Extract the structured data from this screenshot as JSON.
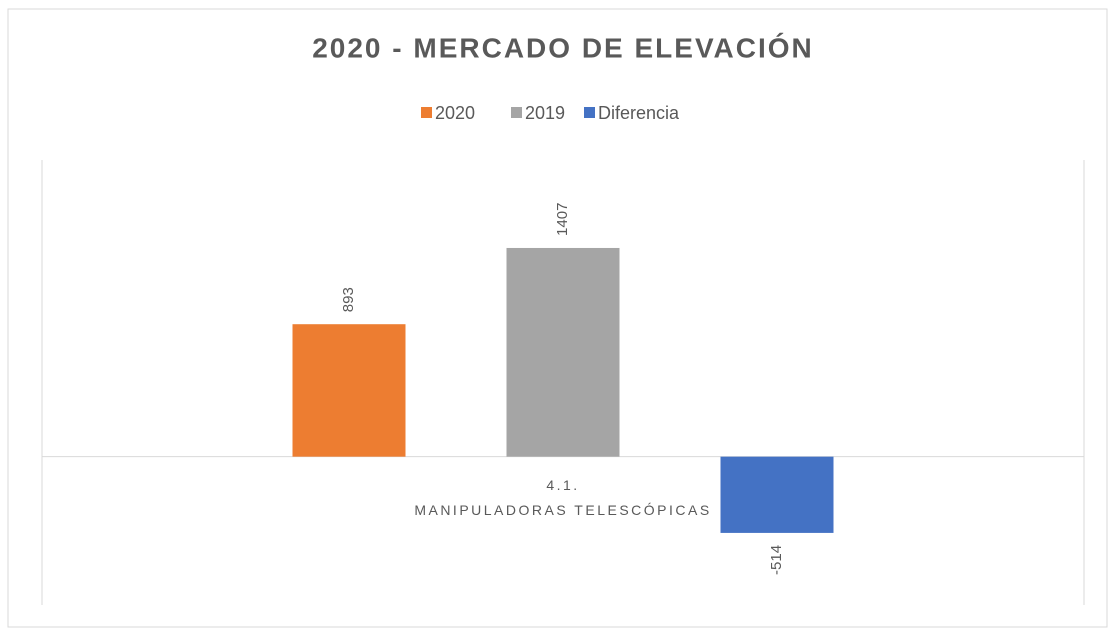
{
  "chart_data": {
    "type": "bar",
    "title": "2020 - MERCADO DE ELEVACIÓN",
    "categories": [
      "4.1.\nMANIPULADORAS TELESCÓPICAS"
    ],
    "series": [
      {
        "name": "2020",
        "color": "#ed7d31",
        "values": [
          893
        ]
      },
      {
        "name": "2019",
        "color": "#a5a5a5",
        "values": [
          1407
        ]
      },
      {
        "name": "Diferencia",
        "color": "#4472c4",
        "values": [
          -514
        ]
      }
    ],
    "ylim": [
      -1000,
      2000
    ],
    "legend": "top",
    "data_labels": true
  }
}
